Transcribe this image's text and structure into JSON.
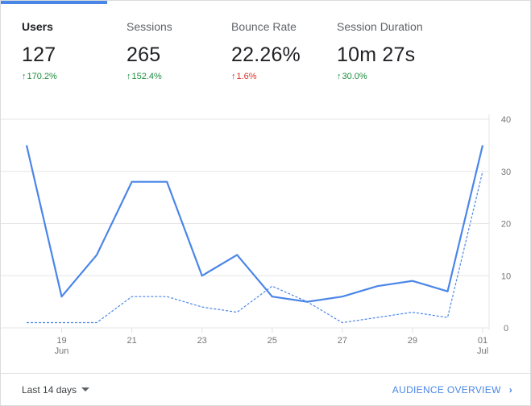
{
  "metrics": [
    {
      "label": "Users",
      "value": "127",
      "change": "170.2%",
      "direction": "up",
      "arrow": "↑"
    },
    {
      "label": "Sessions",
      "value": "265",
      "change": "152.4%",
      "direction": "up",
      "arrow": "↑"
    },
    {
      "label": "Bounce Rate",
      "value": "22.26%",
      "change": "1.6%",
      "direction": "up",
      "arrow": "↑"
    },
    {
      "label": "Session Duration",
      "value": "10m 27s",
      "change": "30.0%",
      "direction": "up",
      "arrow": "↑"
    }
  ],
  "footer": {
    "date_range": "Last 14 days",
    "link": "AUDIENCE OVERVIEW",
    "link_icon": "chevron-right-icon"
  },
  "colors": {
    "accent": "#4a86e8",
    "positive": "#1e8e3e",
    "negative": "#d93025"
  },
  "chart_data": {
    "type": "line",
    "x": [
      "18 Jun",
      "19 Jun",
      "20 Jun",
      "21 Jun",
      "22 Jun",
      "23 Jun",
      "24 Jun",
      "25 Jun",
      "26 Jun",
      "27 Jun",
      "28 Jun",
      "29 Jun",
      "30 Jun",
      "01 Jul"
    ],
    "x_tick_labels": [
      {
        "day": "19",
        "month": "Jun"
      },
      {
        "day": "21",
        "month": ""
      },
      {
        "day": "23",
        "month": ""
      },
      {
        "day": "25",
        "month": ""
      },
      {
        "day": "27",
        "month": ""
      },
      {
        "day": "29",
        "month": ""
      },
      {
        "day": "01",
        "month": "Jul"
      }
    ],
    "y_ticks": [
      "40",
      "30",
      "20",
      "10",
      "0"
    ],
    "ylim": [
      0,
      40
    ],
    "grid": true,
    "series": [
      {
        "values": [
          35,
          6,
          14,
          28,
          28,
          10,
          14,
          6,
          5,
          6,
          8,
          9,
          7,
          35
        ],
        "style": "solid"
      },
      {
        "values": [
          1,
          1,
          1,
          6,
          6,
          4,
          3,
          8,
          5,
          1,
          2,
          3,
          2,
          30
        ],
        "style": "dashed"
      }
    ]
  }
}
